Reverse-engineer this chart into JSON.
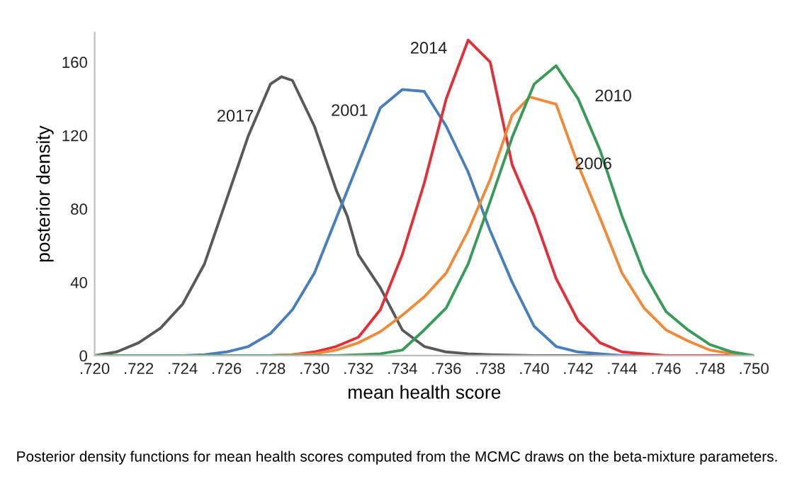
{
  "chart_data": {
    "type": "line",
    "xlabel": "mean health score",
    "ylabel": "posterior density",
    "x": [
      0.72,
      0.721,
      0.722,
      0.723,
      0.724,
      0.725,
      0.726,
      0.727,
      0.728,
      0.729,
      0.73,
      0.731,
      0.732,
      0.733,
      0.734,
      0.735,
      0.736,
      0.737,
      0.738,
      0.739,
      0.74,
      0.741,
      0.742,
      0.743,
      0.744,
      0.745,
      0.746,
      0.747,
      0.748,
      0.749,
      0.75
    ],
    "series": [
      {
        "name": "2017",
        "color": "#595959",
        "x": [
          0.72,
          0.721,
          0.722,
          0.723,
          0.724,
          0.725,
          0.726,
          0.727,
          0.728,
          0.7285,
          0.729,
          0.73,
          0.731,
          0.7315,
          0.732,
          0.733,
          0.734,
          0.735,
          0.736,
          0.737,
          0.738,
          0.74,
          0.745,
          0.75
        ],
        "values": [
          0,
          2,
          7,
          15,
          28,
          50,
          85,
          120,
          148,
          152,
          150,
          125,
          90,
          76,
          55,
          37,
          14,
          5,
          2,
          1,
          0.5,
          0,
          0,
          0
        ]
      },
      {
        "name": "2001",
        "color": "#4a7ebb",
        "values": [
          null,
          null,
          null,
          0,
          0,
          0.5,
          2,
          5,
          12,
          25,
          45,
          75,
          105,
          135,
          145,
          144,
          125,
          100,
          68,
          40,
          16,
          5,
          2,
          1,
          0,
          0,
          0,
          null,
          null,
          null,
          null
        ]
      },
      {
        "name": "2014",
        "color": "#e0303a",
        "values": [
          null,
          null,
          null,
          null,
          null,
          null,
          null,
          0,
          0,
          0.5,
          2,
          5,
          10,
          25,
          55,
          94,
          140,
          172,
          160,
          104,
          76,
          42,
          19,
          7,
          2,
          1,
          0,
          0,
          0,
          0,
          0
        ]
      },
      {
        "name": "2006",
        "color": "#ef8a3a",
        "x": [
          0.72,
          0.728,
          0.729,
          0.73,
          0.731,
          0.732,
          0.733,
          0.734,
          0.735,
          0.736,
          0.737,
          0.738,
          0.739,
          0.7398,
          0.741,
          0.742,
          0.743,
          0.744,
          0.745,
          0.746,
          0.747,
          0.748,
          0.749,
          0.75
        ],
        "values": [
          0,
          0,
          0.5,
          1,
          3,
          7,
          13,
          22,
          32,
          45,
          68,
          96,
          131,
          141,
          137,
          104,
          75,
          45,
          26,
          14,
          8,
          3,
          1,
          0
        ]
      },
      {
        "name": "2010",
        "color": "#3a9a5a",
        "values": [
          0,
          0,
          0,
          0,
          0,
          0,
          0,
          0,
          0,
          0,
          0,
          0,
          0.5,
          1,
          3,
          14,
          26,
          50,
          84,
          119,
          148,
          158,
          140,
          112,
          76,
          45,
          24,
          14,
          6,
          2,
          0
        ]
      }
    ],
    "xlim": [
      0.72,
      0.75
    ],
    "xticks": [
      {
        "value": 0.72,
        "label": ".720"
      },
      {
        "value": 0.722,
        "label": ".722"
      },
      {
        "value": 0.724,
        "label": ".724"
      },
      {
        "value": 0.726,
        "label": ".726"
      },
      {
        "value": 0.728,
        "label": ".728"
      },
      {
        "value": 0.73,
        "label": ".730"
      },
      {
        "value": 0.732,
        "label": ".732"
      },
      {
        "value": 0.734,
        "label": ".734"
      },
      {
        "value": 0.736,
        "label": ".736"
      },
      {
        "value": 0.738,
        "label": ".738"
      },
      {
        "value": 0.74,
        "label": ".740"
      },
      {
        "value": 0.742,
        "label": ".742"
      },
      {
        "value": 0.744,
        "label": ".744"
      },
      {
        "value": 0.746,
        "label": ".746"
      },
      {
        "value": 0.748,
        "label": ".748"
      },
      {
        "value": 0.75,
        "label": ".750"
      }
    ],
    "ylim": [
      0,
      176
    ],
    "yticks": [
      0,
      40,
      80,
      120,
      160
    ],
    "grid": false,
    "legend": false,
    "marker": "none",
    "line_style": "solid",
    "annotations": [
      "Posterior density functions for mean health scores computed from the MCMC draws on the beta-mixture parameters."
    ]
  }
}
